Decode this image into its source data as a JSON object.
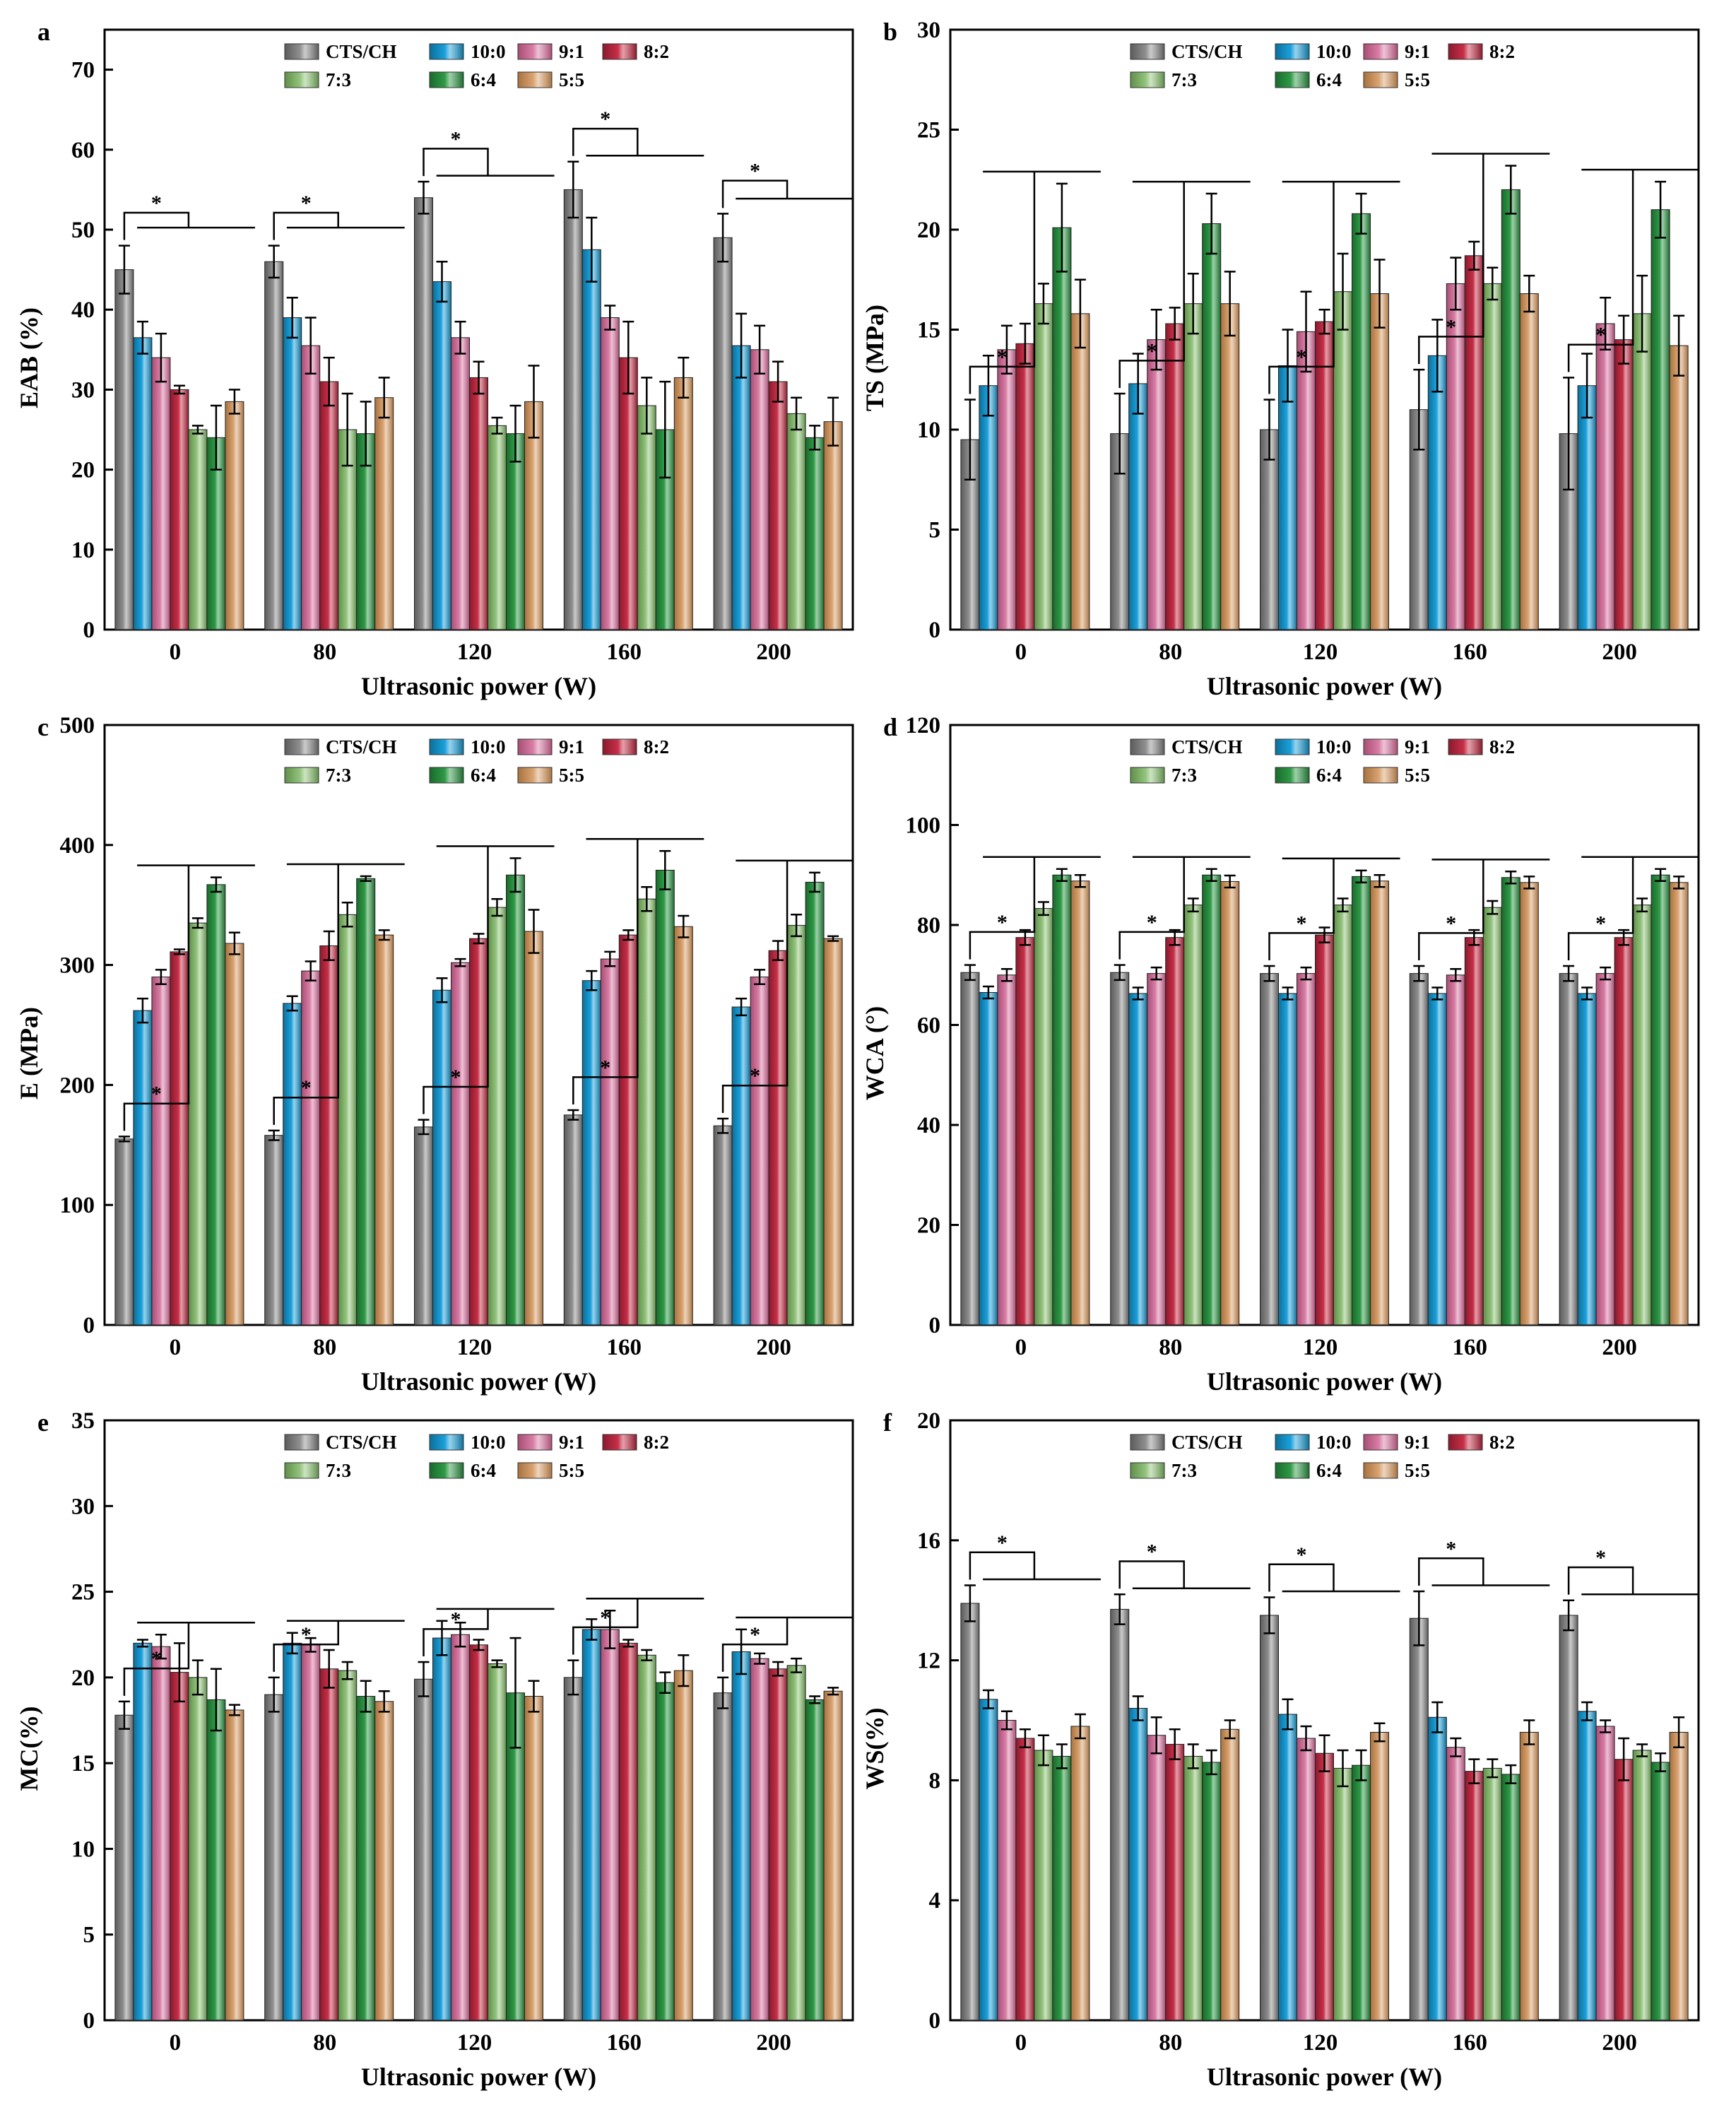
{
  "figure": {
    "series_names": [
      "CTS/CH",
      "10:0",
      "9:1",
      "8:2",
      "7:3",
      "6:4",
      "5:5"
    ],
    "series_colors": [
      "#8f8f8f",
      "#1ba0db",
      "#d97ea6",
      "#c72f48",
      "#93c47d",
      "#2e9a46",
      "#d9a472"
    ],
    "series_dark": [
      "#5c5c5c",
      "#0d6f99",
      "#a84d74",
      "#8a1a2c",
      "#5f8f4a",
      "#1a6a2c",
      "#a8723f"
    ],
    "significance_mark": "*"
  },
  "chart_data": [
    {
      "panel": "a",
      "type": "bar",
      "categories": [
        "0",
        "80",
        "120",
        "160",
        "200"
      ],
      "xlabel": "Ultrasonic power (W)",
      "ylabel": "EAB (%)",
      "ylim": [
        0,
        75
      ],
      "yticks": [
        0,
        10,
        20,
        30,
        40,
        50,
        60,
        70
      ],
      "legend": "top",
      "series": [
        {
          "name": "CTS/CH",
          "values": [
            45.0,
            46.0,
            54.0,
            55.0,
            49.0
          ],
          "errors": [
            3.0,
            2.0,
            2.0,
            3.5,
            3.0
          ]
        },
        {
          "name": "10:0",
          "values": [
            36.5,
            39.0,
            43.5,
            47.5,
            35.5
          ],
          "errors": [
            2.0,
            2.5,
            2.5,
            4.0,
            4.0
          ]
        },
        {
          "name": "9:1",
          "values": [
            34.0,
            35.5,
            36.5,
            39.0,
            35.0
          ],
          "errors": [
            3.0,
            3.5,
            2.0,
            1.5,
            3.0
          ]
        },
        {
          "name": "8:2",
          "values": [
            30.0,
            31.0,
            31.5,
            34.0,
            31.0
          ],
          "errors": [
            0.5,
            3.0,
            2.0,
            4.5,
            2.5
          ]
        },
        {
          "name": "7:3",
          "values": [
            25.0,
            25.0,
            25.5,
            28.0,
            27.0
          ],
          "errors": [
            0.5,
            4.5,
            1.0,
            3.5,
            2.0
          ]
        },
        {
          "name": "6:4",
          "values": [
            24.0,
            24.5,
            24.5,
            25.0,
            24.0
          ],
          "errors": [
            4.0,
            4.0,
            3.5,
            6.0,
            1.5
          ]
        },
        {
          "name": "5:5",
          "values": [
            28.5,
            29.0,
            28.5,
            31.5,
            26.0
          ],
          "errors": [
            1.5,
            2.5,
            4.5,
            2.5,
            3.0
          ]
        }
      ]
    },
    {
      "panel": "b",
      "type": "bar",
      "categories": [
        "0",
        "80",
        "120",
        "160",
        "200"
      ],
      "xlabel": "Ultrasonic power (W)",
      "ylabel": "TS (MPa)",
      "ylim": [
        0,
        30
      ],
      "yticks": [
        0,
        5,
        10,
        15,
        20,
        25,
        30
      ],
      "legend": "top",
      "series": [
        {
          "name": "CTS/CH",
          "values": [
            9.5,
            9.8,
            10.0,
            11.0,
            9.8
          ],
          "errors": [
            2.0,
            2.0,
            1.5,
            2.0,
            2.8
          ]
        },
        {
          "name": "10:0",
          "values": [
            12.2,
            12.3,
            13.2,
            13.7,
            12.2
          ],
          "errors": [
            1.5,
            1.5,
            1.8,
            1.8,
            1.6
          ]
        },
        {
          "name": "9:1",
          "values": [
            14.0,
            14.5,
            14.9,
            17.3,
            15.3
          ],
          "errors": [
            1.2,
            1.5,
            2.0,
            1.3,
            1.3
          ]
        },
        {
          "name": "8:2",
          "values": [
            14.3,
            15.3,
            15.4,
            18.7,
            14.5
          ],
          "errors": [
            1.0,
            0.8,
            0.6,
            0.7,
            1.2
          ]
        },
        {
          "name": "7:3",
          "values": [
            16.3,
            16.3,
            16.9,
            17.3,
            15.8
          ],
          "errors": [
            1.0,
            1.5,
            1.9,
            0.8,
            1.9
          ]
        },
        {
          "name": "6:4",
          "values": [
            20.1,
            20.3,
            20.8,
            22.0,
            21.0
          ],
          "errors": [
            2.2,
            1.5,
            1.0,
            1.2,
            1.4
          ]
        },
        {
          "name": "5:5",
          "values": [
            15.8,
            16.3,
            16.8,
            16.8,
            14.2
          ],
          "errors": [
            1.7,
            1.6,
            1.7,
            0.9,
            1.5
          ]
        }
      ]
    },
    {
      "panel": "c",
      "type": "bar",
      "categories": [
        "0",
        "80",
        "120",
        "160",
        "200"
      ],
      "xlabel": "Ultrasonic power (W)",
      "ylabel": "E (MPa)",
      "ylim": [
        0,
        500
      ],
      "yticks": [
        0,
        100,
        200,
        300,
        400,
        500
      ],
      "legend": "top",
      "series": [
        {
          "name": "CTS/CH",
          "values": [
            155,
            158,
            165,
            175,
            166
          ],
          "errors": [
            2,
            4,
            6,
            4,
            6
          ]
        },
        {
          "name": "10:0",
          "values": [
            262,
            268,
            279,
            287,
            265
          ],
          "errors": [
            10,
            6,
            10,
            8,
            7
          ]
        },
        {
          "name": "9:1",
          "values": [
            290,
            295,
            302,
            305,
            290
          ],
          "errors": [
            6,
            8,
            3,
            6,
            6
          ]
        },
        {
          "name": "8:2",
          "values": [
            311,
            316,
            322,
            325,
            312
          ],
          "errors": [
            2,
            12,
            4,
            4,
            8
          ]
        },
        {
          "name": "7:3",
          "values": [
            335,
            342,
            348,
            355,
            333
          ],
          "errors": [
            4,
            10,
            7,
            10,
            9
          ]
        },
        {
          "name": "6:4",
          "values": [
            367,
            372,
            375,
            379,
            369
          ],
          "errors": [
            6,
            2,
            14,
            16,
            8
          ]
        },
        {
          "name": "5:5",
          "values": [
            318,
            325,
            328,
            332,
            322
          ],
          "errors": [
            9,
            4,
            18,
            9,
            2
          ]
        }
      ]
    },
    {
      "panel": "d",
      "type": "bar",
      "categories": [
        "0",
        "80",
        "120",
        "160",
        "200"
      ],
      "xlabel": "Ultrasonic power (W)",
      "ylabel": "WCA (°)",
      "ylim": [
        0,
        120
      ],
      "yticks": [
        0,
        20,
        40,
        60,
        80,
        100,
        120
      ],
      "legend": "top",
      "series": [
        {
          "name": "CTS/CH",
          "values": [
            70.5,
            70.5,
            70.3,
            70.3,
            70.3
          ],
          "errors": [
            1.5,
            1.5,
            1.5,
            1.5,
            1.5
          ]
        },
        {
          "name": "10:0",
          "values": [
            66.5,
            66.3,
            66.3,
            66.3,
            66.3
          ],
          "errors": [
            1.2,
            1.2,
            1.2,
            1.2,
            1.2
          ]
        },
        {
          "name": "9:1",
          "values": [
            70.0,
            70.3,
            70.3,
            70.0,
            70.3
          ],
          "errors": [
            1.2,
            1.2,
            1.2,
            1.2,
            1.2
          ]
        },
        {
          "name": "8:2",
          "values": [
            77.5,
            77.5,
            78.0,
            77.5,
            77.5
          ],
          "errors": [
            1.5,
            1.5,
            1.5,
            1.5,
            1.5
          ]
        },
        {
          "name": "7:3",
          "values": [
            83.3,
            84.0,
            84.0,
            83.5,
            84.0
          ],
          "errors": [
            1.3,
            1.3,
            1.3,
            1.3,
            1.3
          ]
        },
        {
          "name": "6:4",
          "values": [
            90.0,
            90.0,
            89.7,
            89.5,
            90.0
          ],
          "errors": [
            1.2,
            1.2,
            1.2,
            1.2,
            1.2
          ]
        },
        {
          "name": "5:5",
          "values": [
            88.8,
            88.7,
            88.8,
            88.5,
            88.5
          ],
          "errors": [
            1.2,
            1.2,
            1.2,
            1.2,
            1.2
          ]
        }
      ]
    },
    {
      "panel": "e",
      "type": "bar",
      "categories": [
        "0",
        "80",
        "120",
        "160",
        "200"
      ],
      "xlabel": "Ultrasonic power (W)",
      "ylabel": "MC(%)",
      "ylim": [
        0,
        35
      ],
      "yticks": [
        0,
        5,
        10,
        15,
        20,
        25,
        30,
        35
      ],
      "legend": "top",
      "series": [
        {
          "name": "CTS/CH",
          "values": [
            17.8,
            19.0,
            19.9,
            20.0,
            19.1
          ],
          "errors": [
            0.8,
            1.0,
            1.0,
            1.0,
            0.9
          ]
        },
        {
          "name": "10:0",
          "values": [
            22.0,
            22.0,
            22.3,
            22.8,
            21.5
          ],
          "errors": [
            0.2,
            0.6,
            1.0,
            0.6,
            1.3
          ]
        },
        {
          "name": "9:1",
          "values": [
            21.8,
            21.9,
            22.5,
            22.8,
            21.1
          ],
          "errors": [
            0.7,
            0.4,
            0.7,
            1.1,
            0.3
          ]
        },
        {
          "name": "8:2",
          "values": [
            20.3,
            20.5,
            21.9,
            22.0,
            20.5
          ],
          "errors": [
            1.7,
            1.1,
            0.3,
            0.2,
            0.4
          ]
        },
        {
          "name": "7:3",
          "values": [
            20.0,
            20.4,
            20.8,
            21.3,
            20.7
          ],
          "errors": [
            1.0,
            0.5,
            0.2,
            0.3,
            0.4
          ]
        },
        {
          "name": "6:4",
          "values": [
            18.7,
            18.9,
            19.1,
            19.7,
            18.7
          ],
          "errors": [
            1.8,
            0.9,
            3.2,
            0.6,
            0.2
          ]
        },
        {
          "name": "5:5",
          "values": [
            18.1,
            18.6,
            18.9,
            20.4,
            19.2
          ],
          "errors": [
            0.3,
            0.6,
            0.9,
            0.9,
            0.2
          ]
        }
      ]
    },
    {
      "panel": "f",
      "type": "bar",
      "categories": [
        "0",
        "80",
        "120",
        "160",
        "200"
      ],
      "xlabel": "Ultrasonic power (W)",
      "ylabel": "WS(%)",
      "ylim": [
        0,
        20
      ],
      "yticks": [
        0,
        4,
        8,
        12,
        16,
        20
      ],
      "legend": "top",
      "series": [
        {
          "name": "CTS/CH",
          "values": [
            13.9,
            13.7,
            13.5,
            13.4,
            13.5
          ],
          "errors": [
            0.6,
            0.5,
            0.6,
            0.9,
            0.5
          ]
        },
        {
          "name": "10:0",
          "values": [
            10.7,
            10.4,
            10.2,
            10.1,
            10.3
          ],
          "errors": [
            0.3,
            0.4,
            0.5,
            0.5,
            0.3
          ]
        },
        {
          "name": "9:1",
          "values": [
            10.0,
            9.5,
            9.4,
            9.1,
            9.8
          ],
          "errors": [
            0.3,
            0.6,
            0.4,
            0.3,
            0.2
          ]
        },
        {
          "name": "8:2",
          "values": [
            9.4,
            9.2,
            8.9,
            8.3,
            8.7
          ],
          "errors": [
            0.3,
            0.5,
            0.6,
            0.4,
            0.7
          ]
        },
        {
          "name": "7:3",
          "values": [
            9.0,
            8.8,
            8.4,
            8.4,
            9.0
          ],
          "errors": [
            0.5,
            0.4,
            0.6,
            0.3,
            0.2
          ]
        },
        {
          "name": "6:4",
          "values": [
            8.8,
            8.6,
            8.5,
            8.2,
            8.6
          ],
          "errors": [
            0.4,
            0.4,
            0.5,
            0.3,
            0.3
          ]
        },
        {
          "name": "5:5",
          "values": [
            9.8,
            9.7,
            9.6,
            9.6,
            9.6
          ],
          "errors": [
            0.4,
            0.3,
            0.3,
            0.4,
            0.5
          ]
        }
      ]
    }
  ]
}
